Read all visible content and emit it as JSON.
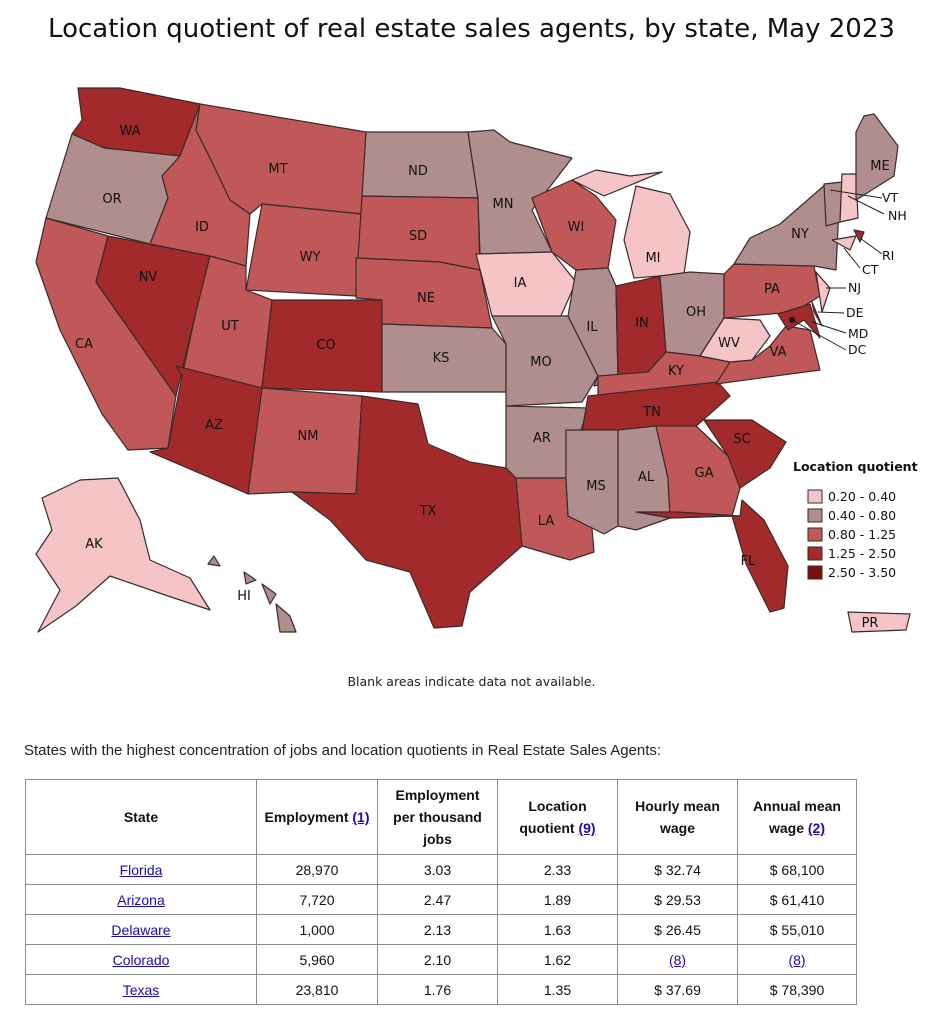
{
  "title": "Location quotient of real estate sales agents, by state, May 2023",
  "colors": {
    "q1": "#f4c4c6",
    "q2": "#b08e8e",
    "q3": "#c0585a",
    "q4": "#a32a2a",
    "q5": "#7a1010",
    "blank": "#ffffff"
  },
  "legend": {
    "title": "Location quotient",
    "items": [
      "0.20 - 0.40",
      "0.40 - 0.80",
      "0.80 - 1.25",
      "1.25 - 2.50",
      "2.50 - 3.50"
    ]
  },
  "states": {
    "WA": "WA",
    "OR": "OR",
    "CA": "CA",
    "NV": "NV",
    "ID": "ID",
    "MT": "MT",
    "WY": "WY",
    "UT": "UT",
    "AZ": "AZ",
    "CO": "CO",
    "NM": "NM",
    "ND": "ND",
    "SD": "SD",
    "NE": "NE",
    "KS": "KS",
    "TX": "TX",
    "MN": "MN",
    "IA": "IA",
    "MO": "MO",
    "AR": "AR",
    "LA": "LA",
    "WI": "WI",
    "IL": "IL",
    "MI": "MI",
    "IN": "IN",
    "OH": "OH",
    "KY": "KY",
    "TN": "TN",
    "MS": "MS",
    "AL": "AL",
    "GA": "GA",
    "FL": "FL",
    "SC": "SC",
    "VA": "VA",
    "WV": "WV",
    "PA": "PA",
    "NY": "NY",
    "ME": "ME",
    "AK": "AK",
    "HI": "HI",
    "PR": "PR",
    "VT": "VT",
    "NH": "NH",
    "RI": "RI",
    "CT": "CT",
    "NJ": "NJ",
    "DE": "DE",
    "MD": "MD",
    "DC": "DC"
  },
  "note": "Blank areas indicate data not available.",
  "intro": "States with the highest concentration of jobs and location quotients in Real Estate Sales Agents:",
  "table": {
    "headers": {
      "state": "State",
      "employment": "Employment",
      "employment_ref": "(1)",
      "per_thousand": "Employment per thousand jobs",
      "lq": "Location quotient",
      "lq_ref": "(9)",
      "hourly": "Hourly mean wage",
      "annual": "Annual mean wage",
      "annual_ref": "(2)"
    },
    "rows": [
      {
        "state": "Florida",
        "employment": "28,970",
        "per_thousand": "3.03",
        "lq": "2.33",
        "hourly": "$ 32.74",
        "annual": "$ 68,100"
      },
      {
        "state": "Arizona",
        "employment": "7,720",
        "per_thousand": "2.47",
        "lq": "1.89",
        "hourly": "$ 29.53",
        "annual": "$ 61,410"
      },
      {
        "state": "Delaware",
        "employment": "1,000",
        "per_thousand": "2.13",
        "lq": "1.63",
        "hourly": "$ 26.45",
        "annual": "$ 55,010"
      },
      {
        "state": "Colorado",
        "employment": "5,960",
        "per_thousand": "2.10",
        "lq": "1.62",
        "hourly": "(8)",
        "annual": "(8)"
      },
      {
        "state": "Texas",
        "employment": "23,810",
        "per_thousand": "1.76",
        "lq": "1.35",
        "hourly": "$ 37.69",
        "annual": "$ 78,390"
      }
    ]
  }
}
